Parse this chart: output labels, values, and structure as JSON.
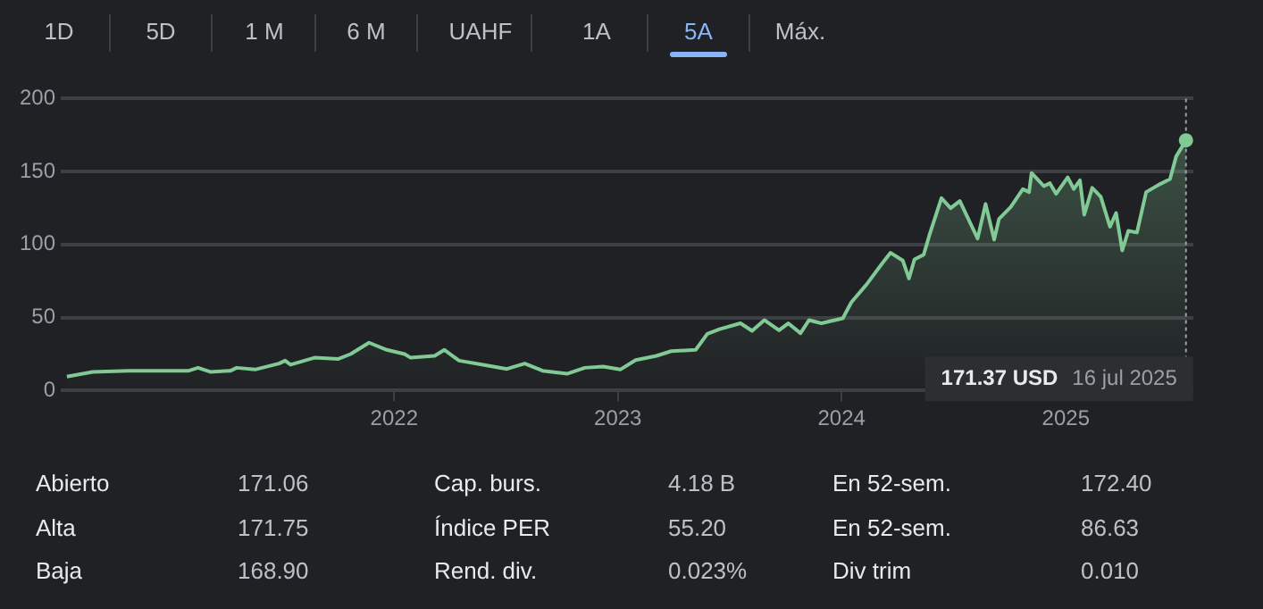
{
  "chart_data": {
    "type": "area",
    "x": [
      "2020-07-16",
      "2020-08-27",
      "2020-10-25",
      "2021-01-31",
      "2021-02-15",
      "2021-03-07",
      "2021-04-09",
      "2021-04-19",
      "2021-05-19",
      "2021-06-27",
      "2021-07-07",
      "2021-07-16",
      "2021-08-24",
      "2021-10-02",
      "2021-10-22",
      "2021-11-21",
      "2021-12-20",
      "2022-01-18",
      "2022-01-28",
      "2022-03-08",
      "2022-03-24",
      "2022-04-17",
      "2022-05-26",
      "2022-07-04",
      "2022-08-02",
      "2022-08-31",
      "2022-10-10",
      "2022-11-08",
      "2022-12-08",
      "2023-01-05",
      "2023-01-30",
      "2023-03-05",
      "2023-03-29",
      "2023-05-08",
      "2023-05-27",
      "2023-06-16",
      "2023-07-20",
      "2023-08-08",
      "2023-08-28",
      "2023-09-21",
      "2023-10-06",
      "2023-10-26",
      "2023-11-09",
      "2023-11-29",
      "2024-01-03",
      "2024-01-17",
      "2024-02-11",
      "2024-03-07",
      "2024-03-21",
      "2024-04-10",
      "2024-04-20",
      "2024-04-29",
      "2024-05-14",
      "2024-05-24",
      "2024-06-12",
      "2024-06-27",
      "2024-07-12",
      "2024-08-10",
      "2024-08-23",
      "2024-09-06",
      "2024-09-14",
      "2024-10-03",
      "2024-10-23",
      "2024-11-02",
      "2024-11-06",
      "2024-11-26",
      "2024-12-06",
      "2024-12-16",
      "2025-01-04",
      "2025-01-14",
      "2025-01-24",
      "2025-01-31",
      "2025-02-13",
      "2025-02-27",
      "2025-03-14",
      "2025-03-24",
      "2025-04-03",
      "2025-04-13",
      "2025-04-27",
      "2025-05-12",
      "2025-06-01",
      "2025-06-20",
      "2025-06-30",
      "2025-07-16"
    ],
    "series": [
      {
        "color": "#81c995",
        "values": [
          9.4,
          12.7,
          13.5,
          13.5,
          15.5,
          12.7,
          13.5,
          15.5,
          14.3,
          18.4,
          20.4,
          17.6,
          22.4,
          21.6,
          24.9,
          32.7,
          27.8,
          24.9,
          22.4,
          23.7,
          27.8,
          20.4,
          17.6,
          14.7,
          18.4,
          13.5,
          11.4,
          15.5,
          16.3,
          14.3,
          20.8,
          23.7,
          26.9,
          27.8,
          38.8,
          42,
          46,
          40.8,
          48.2,
          41.2,
          46,
          39.2,
          48.2,
          46,
          49.4,
          60.4,
          72.7,
          86.9,
          94.3,
          89,
          76.7,
          89.8,
          93,
          107.3,
          131.8,
          124.9,
          129.8,
          104.1,
          127.8,
          103.3,
          117.6,
          125.7,
          138,
          135.9,
          149,
          140,
          142,
          134.7,
          146,
          138,
          144,
          120.4,
          138.8,
          132.7,
          112.2,
          121.6,
          95.9,
          109.4,
          108.2,
          135.9,
          140.8,
          144.9,
          160.4,
          171.37
        ]
      }
    ],
    "xlim": [
      "2020-07-06",
      "2025-07-28"
    ],
    "xticks": [
      {
        "value": "2022-01-01",
        "label": "2022"
      },
      {
        "value": "2023-01-01",
        "label": "2023"
      },
      {
        "value": "2024-01-01",
        "label": "2024"
      },
      {
        "value": "2025-01-01",
        "label": "2025"
      }
    ],
    "ylim": [
      0,
      200
    ],
    "yticks": [
      0,
      50,
      100,
      150,
      200
    ],
    "grid": "y",
    "legend": false,
    "ref_lines": [
      {
        "axis": "x",
        "value": "2025-07-16",
        "line_style": "dotted",
        "color": "#9aa0a6"
      }
    ],
    "annotations": [
      "1D",
      "5D",
      "1 M",
      "6 M",
      "UAHF",
      "1A",
      "5A",
      "Máx.",
      "171.37 USD",
      "16 jul 2025",
      "Abierto",
      "171.06",
      "Cap. burs.",
      "4.18 B",
      "En 52-sem.",
      "172.40",
      "Alta",
      "171.75",
      "Índice PER",
      "55.20",
      "En 52-sem.",
      "86.63",
      "Baja",
      "168.90",
      "Rend. div.",
      "0.023%",
      "Div trim",
      "0.010"
    ]
  }
}
